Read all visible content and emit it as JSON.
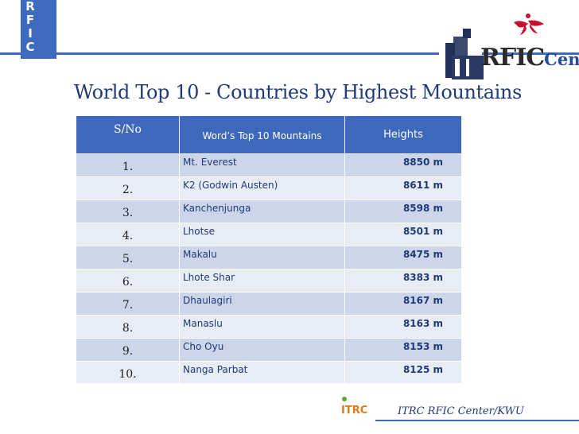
{
  "stripe_letters": [
    "R",
    "F",
    "I",
    "C"
  ],
  "logo": {
    "main": "RFIC",
    "suffix": "Center"
  },
  "title": "World Top 10 - Countries by Highest Mountains",
  "table": {
    "headers": [
      "S/No",
      "Word’s Top 10 Mountains",
      "Heights"
    ],
    "rows": [
      {
        "sno": "1.",
        "mountain": "Mt. Everest",
        "height": "8850 m"
      },
      {
        "sno": "2.",
        "mountain": "K2 (Godwin Austen)",
        "height": "8611  m"
      },
      {
        "sno": "3.",
        "mountain": "Kanchenjunga",
        "height": "8598 m"
      },
      {
        "sno": "4.",
        "mountain": "Lhotse",
        "height": "8501  m"
      },
      {
        "sno": "5.",
        "mountain": "Makalu",
        "height": "8475 m"
      },
      {
        "sno": "6.",
        "mountain": "Lhote Shar",
        "height": "8383 m"
      },
      {
        "sno": "7.",
        "mountain": "Dhaulagiri",
        "height": "8167 m"
      },
      {
        "sno": "8.",
        "mountain": "Manaslu",
        "height": "8163 m"
      },
      {
        "sno": "9.",
        "mountain": "Cho Oyu",
        "height": "8153 m"
      },
      {
        "sno": "10.",
        "mountain": "Nanga Parbat",
        "height": "8125 m"
      }
    ]
  },
  "footer": {
    "logo_text": "ITRC",
    "text": "ITRC RFIC Center/KWU"
  },
  "colors": {
    "accent": "#3f6bbf",
    "header_bg": "#3e68bb",
    "row_dark": "#ccd5e9",
    "row_light": "#e8ecf5",
    "title": "#1f3a78"
  }
}
